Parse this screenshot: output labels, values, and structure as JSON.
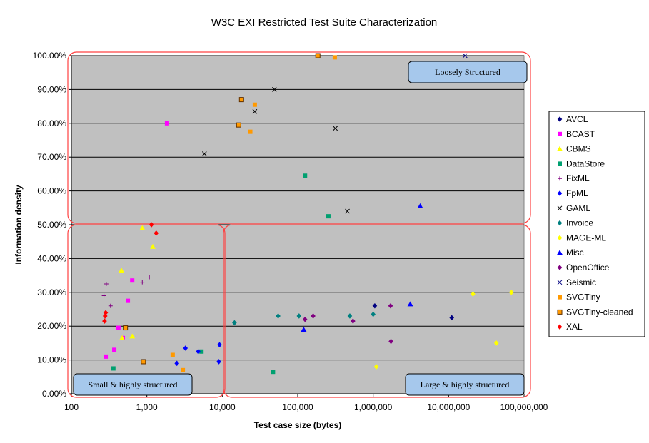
{
  "chart_data": {
    "type": "scatter",
    "title": "W3C EXI Restricted Test Suite Characterization",
    "xlabel": "Test case size (bytes)",
    "ylabel": "Information density",
    "x_scale": "log",
    "xlim": [
      100,
      100000000
    ],
    "ylim": [
      0,
      100
    ],
    "x_ticks": [
      {
        "value": 100,
        "label": "100"
      },
      {
        "value": 1000,
        "label": "1,000"
      },
      {
        "value": 10000,
        "label": "10,000"
      },
      {
        "value": 100000,
        "label": "100,000"
      },
      {
        "value": 1000000,
        "label": "1,000,000"
      },
      {
        "value": 10000000,
        "label": "10,000,000"
      },
      {
        "value": 100000000,
        "label": "100,000,000"
      }
    ],
    "y_ticks": [
      {
        "value": 0,
        "label": "0.00%"
      },
      {
        "value": 10,
        "label": "10.00%"
      },
      {
        "value": 20,
        "label": "20.00%"
      },
      {
        "value": 30,
        "label": "30.00%"
      },
      {
        "value": 40,
        "label": "40.00%"
      },
      {
        "value": 50,
        "label": "50.00%"
      },
      {
        "value": 60,
        "label": "60.00%"
      },
      {
        "value": 70,
        "label": "70.00%"
      },
      {
        "value": 80,
        "label": "80.00%"
      },
      {
        "value": 90,
        "label": "90.00%"
      },
      {
        "value": 100,
        "label": "100.00%"
      }
    ],
    "grid": "horizontal",
    "plot_background": "#c0c0c0",
    "legend_position": "right",
    "series": [
      {
        "name": "AVCL",
        "marker": "diamond",
        "color": "#000080",
        "points": [
          [
            1050000,
            26
          ],
          [
            11000000,
            22.5
          ]
        ]
      },
      {
        "name": "BCAST",
        "marker": "square",
        "color": "#ff00ff",
        "points": [
          [
            1850,
            80
          ],
          [
            640,
            33.5
          ],
          [
            560,
            27.5
          ],
          [
            420,
            19.5
          ],
          [
            480,
            16.5
          ],
          [
            370,
            13
          ],
          [
            285,
            11
          ]
        ]
      },
      {
        "name": "CBMS",
        "marker": "triangle",
        "color": "#ffff00",
        "points": [
          [
            870,
            49
          ],
          [
            1200,
            43.5
          ],
          [
            460,
            36.5
          ],
          [
            470,
            16.5
          ],
          [
            640,
            17
          ]
        ]
      },
      {
        "name": "DataStore",
        "marker": "square",
        "color": "#00a070",
        "points": [
          [
            125000,
            64.5
          ],
          [
            255000,
            52.5
          ],
          [
            5300,
            12.5
          ],
          [
            360,
            7.5
          ],
          [
            47000,
            6.5
          ]
        ]
      },
      {
        "name": "FixML",
        "marker": "plus",
        "color": "#800080",
        "points": [
          [
            290,
            32.5
          ],
          [
            1080,
            34.5
          ],
          [
            870,
            33
          ],
          [
            270,
            29
          ],
          [
            330,
            26
          ]
        ]
      },
      {
        "name": "FpML",
        "marker": "diamond",
        "color": "#0000ff",
        "points": [
          [
            3250,
            13.5
          ],
          [
            9200,
            14.5
          ],
          [
            4800,
            12.5
          ],
          [
            2500,
            9
          ],
          [
            9000,
            9.5
          ]
        ]
      },
      {
        "name": "GAML",
        "marker": "x",
        "color": "#000000",
        "points": [
          [
            49000,
            90
          ],
          [
            27000,
            83.5
          ],
          [
            5800,
            71
          ],
          [
            315000,
            78.5
          ],
          [
            455000,
            54
          ]
        ]
      },
      {
        "name": "Invoice",
        "marker": "diamond",
        "color": "#008080",
        "points": [
          [
            14500,
            21
          ],
          [
            55000,
            23
          ],
          [
            104000,
            23
          ],
          [
            490000,
            23
          ],
          [
            1000000,
            23.5
          ]
        ]
      },
      {
        "name": "MAGE-ML",
        "marker": "diamond",
        "color": "#ffff00",
        "points": [
          [
            21000000,
            29.5
          ],
          [
            68000000,
            30
          ],
          [
            43000000,
            15
          ],
          [
            1100000,
            8
          ]
        ]
      },
      {
        "name": "Misc",
        "marker": "triangle",
        "color": "#0000ff",
        "points": [
          [
            4200000,
            55.5
          ],
          [
            3100000,
            26.5
          ],
          [
            120000,
            19
          ]
        ]
      },
      {
        "name": "OpenOffice",
        "marker": "diamond",
        "color": "#800080",
        "points": [
          [
            125000,
            22
          ],
          [
            160000,
            23
          ],
          [
            540000,
            21.5
          ],
          [
            1700000,
            26
          ],
          [
            1720000,
            15.5
          ]
        ]
      },
      {
        "name": "Seismic",
        "marker": "x",
        "color": "#000080",
        "points": [
          [
            16500000,
            100
          ]
        ]
      },
      {
        "name": "SVGTiny",
        "marker": "square",
        "color": "#ff9900",
        "points": [
          [
            310000,
            99.5
          ],
          [
            27000,
            85.5
          ],
          [
            23500,
            77.5
          ],
          [
            2200,
            11.5
          ],
          [
            3000,
            7
          ]
        ]
      },
      {
        "name": "SVGTiny-cleaned",
        "marker": "square",
        "color": "#ff9900",
        "edge_color": "#603000",
        "points": [
          [
            185000,
            100
          ],
          [
            18000,
            87
          ],
          [
            16500,
            79.5
          ],
          [
            520,
            19.5
          ],
          [
            900,
            9.5
          ]
        ]
      },
      {
        "name": "XAL",
        "marker": "diamond",
        "color": "#ff0000",
        "points": [
          [
            1150,
            50
          ],
          [
            1330,
            47.5
          ],
          [
            285,
            24
          ],
          [
            280,
            23
          ],
          [
            275,
            21.5
          ]
        ]
      }
    ],
    "annotations": [
      {
        "text": "Loosely Structured",
        "region": "top",
        "box": "upper-right"
      },
      {
        "text": "Small & highly structured",
        "region": "bottom-left",
        "box": "lower-left"
      },
      {
        "text": "Large & highly structured",
        "region": "bottom-right",
        "box": "lower-right"
      }
    ]
  }
}
